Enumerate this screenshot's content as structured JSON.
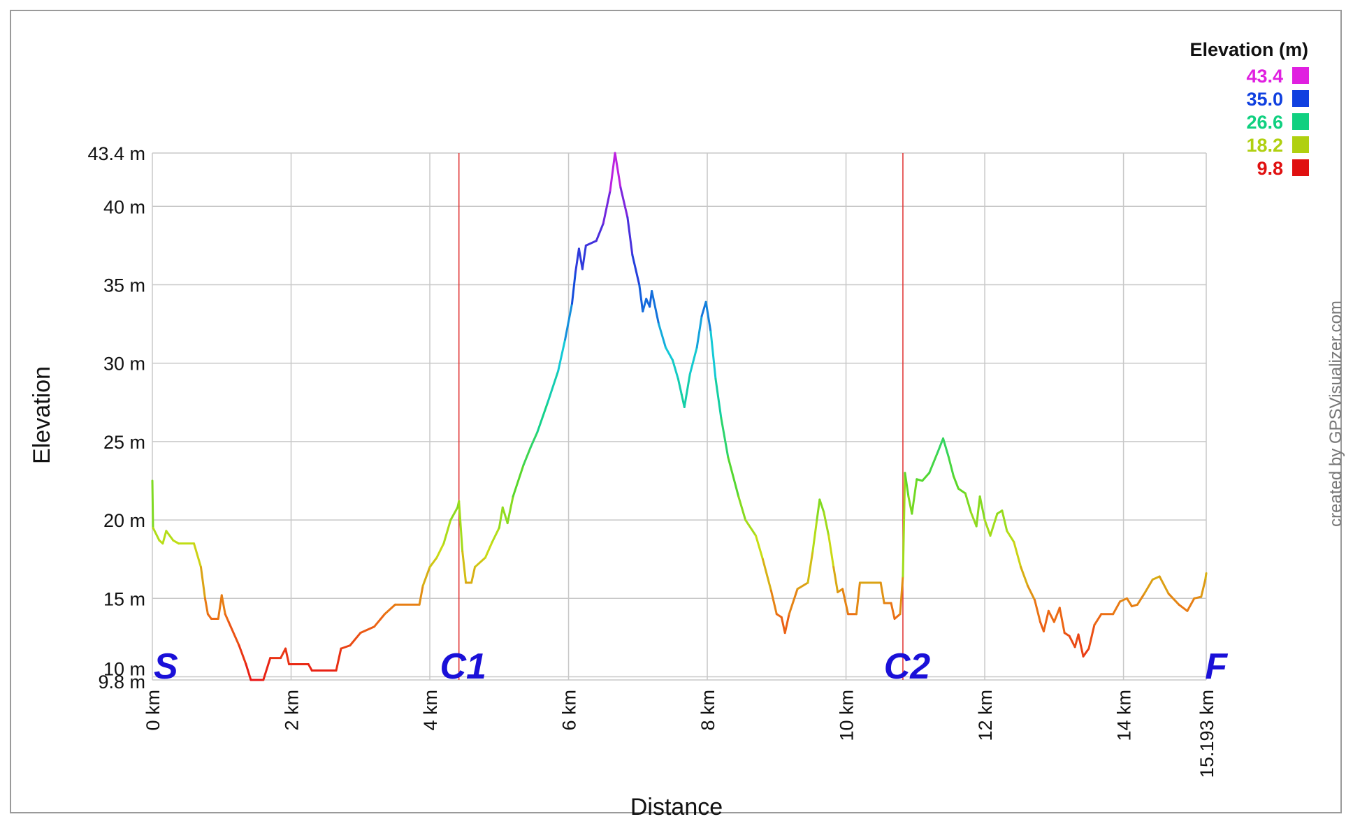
{
  "chart_data": {
    "type": "line",
    "title": "",
    "xlabel": "Distance",
    "ylabel": "Elevation",
    "xlim": [
      0,
      15.193
    ],
    "ylim": [
      9.8,
      43.4
    ],
    "x_ticks": [
      {
        "value": 0,
        "label": "0 km"
      },
      {
        "value": 2,
        "label": "2 km"
      },
      {
        "value": 4,
        "label": "4 km"
      },
      {
        "value": 6,
        "label": "6 km"
      },
      {
        "value": 8,
        "label": "8 km"
      },
      {
        "value": 10,
        "label": "10 km"
      },
      {
        "value": 12,
        "label": "12 km"
      },
      {
        "value": 14,
        "label": "14 km"
      },
      {
        "value": 15.193,
        "label": "15.193 km"
      }
    ],
    "y_ticks": [
      {
        "value": 43.4,
        "label": "43.4 m"
      },
      {
        "value": 40,
        "label": "40 m"
      },
      {
        "value": 35,
        "label": "35 m"
      },
      {
        "value": 30,
        "label": "30 m"
      },
      {
        "value": 25,
        "label": "25 m"
      },
      {
        "value": 20,
        "label": "20 m"
      },
      {
        "value": 15,
        "label": "15 m"
      },
      {
        "value": 10,
        "label": "10 m"
      },
      {
        "value": 9.8,
        "label": "9.8 m"
      }
    ],
    "grid": true,
    "legend": {
      "title": "Elevation (m)",
      "placement": "top-right",
      "entries": [
        {
          "label": "43.4",
          "color": "#e020e0"
        },
        {
          "label": "35.0",
          "color": "#1040e0"
        },
        {
          "label": "26.6",
          "color": "#10d080"
        },
        {
          "label": "18.2",
          "color": "#b0d010"
        },
        {
          "label": "9.8",
          "color": "#e01010"
        }
      ]
    },
    "markers": [
      {
        "label": "S",
        "x": 0,
        "line": false
      },
      {
        "label": "C1",
        "x": 4.42,
        "line": true
      },
      {
        "label": "C2",
        "x": 10.82,
        "line": true
      },
      {
        "label": "F",
        "x": 15.193,
        "line": false
      }
    ],
    "marker_line_color": "#e03030",
    "series": [
      {
        "points": [
          [
            0.0,
            22.5
          ],
          [
            0.01,
            19.5
          ],
          [
            0.1,
            18.7
          ],
          [
            0.15,
            18.5
          ],
          [
            0.2,
            19.3
          ],
          [
            0.3,
            18.7
          ],
          [
            0.38,
            18.5
          ],
          [
            0.6,
            18.5
          ],
          [
            0.7,
            17.0
          ],
          [
            0.76,
            15.0
          ],
          [
            0.8,
            14.0
          ],
          [
            0.85,
            13.7
          ],
          [
            0.95,
            13.7
          ],
          [
            1.0,
            15.2
          ],
          [
            1.05,
            14.0
          ],
          [
            1.1,
            13.5
          ],
          [
            1.25,
            12.0
          ],
          [
            1.35,
            10.8
          ],
          [
            1.42,
            9.8
          ],
          [
            1.6,
            9.8
          ],
          [
            1.7,
            11.2
          ],
          [
            1.85,
            11.2
          ],
          [
            1.92,
            11.8
          ],
          [
            1.97,
            10.8
          ],
          [
            2.25,
            10.8
          ],
          [
            2.3,
            10.4
          ],
          [
            2.65,
            10.4
          ],
          [
            2.72,
            11.8
          ],
          [
            2.85,
            12.0
          ],
          [
            3.0,
            12.8
          ],
          [
            3.2,
            13.2
          ],
          [
            3.35,
            14.0
          ],
          [
            3.5,
            14.6
          ],
          [
            3.85,
            14.6
          ],
          [
            3.9,
            15.8
          ],
          [
            4.0,
            17.0
          ],
          [
            4.1,
            17.6
          ],
          [
            4.2,
            18.5
          ],
          [
            4.3,
            20.0
          ],
          [
            4.4,
            20.8
          ],
          [
            4.42,
            21.2
          ],
          [
            4.47,
            18.0
          ],
          [
            4.52,
            16.0
          ],
          [
            4.6,
            16.0
          ],
          [
            4.65,
            17.0
          ],
          [
            4.8,
            17.6
          ],
          [
            4.9,
            18.6
          ],
          [
            5.0,
            19.5
          ],
          [
            5.05,
            20.8
          ],
          [
            5.12,
            19.8
          ],
          [
            5.2,
            21.5
          ],
          [
            5.35,
            23.5
          ],
          [
            5.45,
            24.6
          ],
          [
            5.55,
            25.6
          ],
          [
            5.7,
            27.5
          ],
          [
            5.85,
            29.5
          ],
          [
            5.95,
            31.5
          ],
          [
            6.05,
            33.8
          ],
          [
            6.1,
            35.8
          ],
          [
            6.15,
            37.3
          ],
          [
            6.2,
            36.0
          ],
          [
            6.25,
            37.5
          ],
          [
            6.4,
            37.8
          ],
          [
            6.5,
            38.9
          ],
          [
            6.6,
            41.0
          ],
          [
            6.67,
            43.4
          ],
          [
            6.75,
            41.2
          ],
          [
            6.85,
            39.3
          ],
          [
            6.92,
            36.9
          ],
          [
            7.02,
            35.0
          ],
          [
            7.07,
            33.3
          ],
          [
            7.12,
            34.1
          ],
          [
            7.17,
            33.6
          ],
          [
            7.2,
            34.6
          ],
          [
            7.3,
            32.5
          ],
          [
            7.4,
            31.0
          ],
          [
            7.5,
            30.2
          ],
          [
            7.58,
            29.0
          ],
          [
            7.63,
            28.0
          ],
          [
            7.67,
            27.2
          ],
          [
            7.75,
            29.3
          ],
          [
            7.85,
            31.0
          ],
          [
            7.92,
            33.0
          ],
          [
            7.98,
            33.9
          ],
          [
            8.05,
            32.0
          ],
          [
            8.12,
            29.0
          ],
          [
            8.2,
            26.5
          ],
          [
            8.3,
            24.0
          ],
          [
            8.45,
            21.5
          ],
          [
            8.55,
            20.0
          ],
          [
            8.7,
            19.0
          ],
          [
            8.8,
            17.5
          ],
          [
            8.92,
            15.5
          ],
          [
            9.0,
            14.0
          ],
          [
            9.07,
            13.8
          ],
          [
            9.12,
            12.8
          ],
          [
            9.18,
            14.0
          ],
          [
            9.3,
            15.6
          ],
          [
            9.45,
            16.0
          ],
          [
            9.52,
            18.0
          ],
          [
            9.58,
            20.0
          ],
          [
            9.62,
            21.3
          ],
          [
            9.68,
            20.5
          ],
          [
            9.75,
            19.0
          ],
          [
            9.82,
            17.0
          ],
          [
            9.88,
            15.4
          ],
          [
            9.95,
            15.6
          ],
          [
            10.03,
            14.0
          ],
          [
            10.15,
            14.0
          ],
          [
            10.2,
            16.0
          ],
          [
            10.5,
            16.0
          ],
          [
            10.55,
            14.7
          ],
          [
            10.65,
            14.7
          ],
          [
            10.7,
            13.7
          ],
          [
            10.78,
            14.0
          ],
          [
            10.82,
            16.4
          ],
          [
            10.85,
            23.0
          ],
          [
            10.9,
            21.5
          ],
          [
            10.95,
            20.4
          ],
          [
            11.02,
            22.6
          ],
          [
            11.1,
            22.5
          ],
          [
            11.2,
            23.0
          ],
          [
            11.32,
            24.3
          ],
          [
            11.4,
            25.2
          ],
          [
            11.48,
            24.0
          ],
          [
            11.55,
            22.8
          ],
          [
            11.62,
            22.0
          ],
          [
            11.72,
            21.7
          ],
          [
            11.8,
            20.5
          ],
          [
            11.88,
            19.6
          ],
          [
            11.93,
            21.5
          ],
          [
            12.0,
            20.0
          ],
          [
            12.08,
            19.0
          ],
          [
            12.18,
            20.4
          ],
          [
            12.25,
            20.6
          ],
          [
            12.32,
            19.3
          ],
          [
            12.42,
            18.6
          ],
          [
            12.52,
            17.0
          ],
          [
            12.62,
            15.8
          ],
          [
            12.72,
            14.9
          ],
          [
            12.8,
            13.5
          ],
          [
            12.85,
            12.9
          ],
          [
            12.92,
            14.2
          ],
          [
            13.0,
            13.5
          ],
          [
            13.08,
            14.4
          ],
          [
            13.15,
            12.8
          ],
          [
            13.22,
            12.6
          ],
          [
            13.3,
            11.9
          ],
          [
            13.35,
            12.7
          ],
          [
            13.42,
            11.3
          ],
          [
            13.5,
            11.8
          ],
          [
            13.58,
            13.3
          ],
          [
            13.68,
            14.0
          ],
          [
            13.85,
            14.0
          ],
          [
            13.95,
            14.8
          ],
          [
            14.05,
            15.0
          ],
          [
            14.12,
            14.5
          ],
          [
            14.2,
            14.6
          ],
          [
            14.3,
            15.3
          ],
          [
            14.42,
            16.2
          ],
          [
            14.52,
            16.4
          ],
          [
            14.65,
            15.3
          ],
          [
            14.8,
            14.6
          ],
          [
            14.92,
            14.2
          ],
          [
            15.02,
            15.0
          ],
          [
            15.12,
            15.1
          ],
          [
            15.18,
            16.2
          ],
          [
            15.193,
            16.6
          ]
        ]
      }
    ]
  },
  "credit": "created by GPSVisualizer.com"
}
